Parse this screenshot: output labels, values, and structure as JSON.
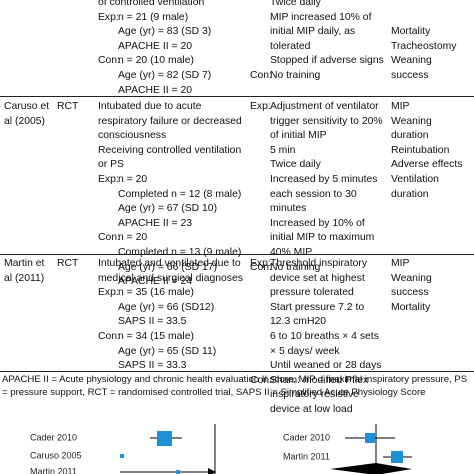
{
  "table": {
    "rows": [
      {
        "study": null,
        "design": null,
        "participants": {
          "description": [
            "of controlled ventilation"
          ],
          "groups": [
            {
              "label": "Exp:",
              "items": [
                "n = 21 (9 male)",
                "Age (yr) = 83 (SD 3)",
                "APACHE II = 20"
              ]
            },
            {
              "label": "Con:",
              "items": [
                "n = 20 (10 male)",
                "Age (yr) = 82 (SD 7)",
                "APACHE II = 20"
              ]
            }
          ]
        },
        "intervention": [
          {
            "label": null,
            "items": [
              "Twice daily",
              "MIP increased 10% of initial MIP daily, as tolerated",
              "Stopped if adverse signs"
            ]
          },
          {
            "label": "Con:",
            "items": [
              "No training"
            ]
          }
        ],
        "outcomes": [
          "Mortality",
          "Tracheostomy",
          "Weaning success"
        ]
      },
      {
        "study": "Caruso et al (2005)",
        "design": "RCT",
        "participants": {
          "description": [
            "Intubated due to acute respiratory failure or decreased consciousness",
            "Receiving controlled ventilation or PS"
          ],
          "groups": [
            {
              "label": "Exp:",
              "items": [
                "n = 20",
                "Completed n = 12 (8 male)",
                "Age (yr) = 67 (SD 10)",
                "APACHE II = 23"
              ]
            },
            {
              "label": "Con:",
              "items": [
                "n = 20",
                "Completed n = 13 (9 male)",
                "Age (yr) = 66 (SD 17)",
                "APACHE II = 24"
              ]
            }
          ]
        },
        "intervention": [
          {
            "label": "Exp:",
            "items": [
              "Adjustment of ventilator trigger sensitivity to 20% of initial MIP",
              "5 min",
              "Twice daily",
              "Increased by 5 minutes each session to 30 minutes",
              "Increased by 10% of initial MIP to maximum 40% MIP"
            ]
          },
          {
            "label": "Con:",
            "items": [
              "No training"
            ]
          }
        ],
        "outcomes": [
          "MIP",
          "Weaning duration",
          "Reintubation",
          "Adverse effects",
          "Ventilation duration"
        ]
      },
      {
        "study": "Martin et al (2011)",
        "design": "RCT",
        "participants": {
          "description": [
            "Intubated and ventilated due to medical and surgical diagnoses"
          ],
          "groups": [
            {
              "label": "Exp:",
              "items": [
                "n = 35 (16 male)",
                "Age (yr) = 66 (SD12)",
                "SAPS II = 33.5"
              ]
            },
            {
              "label": "Con:",
              "items": [
                "n = 34 (15 male)",
                "Age (yr) = 65 (SD 11)",
                "SAPS II = 33.3"
              ]
            }
          ]
        },
        "intervention": [
          {
            "label": "Exp:",
            "items": [
              "Threshold inspiratory device set at highest pressure tolerated",
              "Start pressure 7.2 to 12.3 cmH20",
              "6 to 10 breaths × 4 sets × 5 days/ week",
              "Until weaned or 28 days"
            ]
          },
          {
            "label": "Con:",
            "items": [
              "Sham: modified Pflex inspiratory resistive device at low load"
            ]
          }
        ],
        "outcomes": [
          "MIP",
          "Weaning success",
          "Mortality"
        ]
      }
    ],
    "footnote": "APACHE II = Acute physiology and chronic health evaluation II score, MIP = maximal inspiratory pressure, PS = pressure support, RCT = randomised controlled trial, SAPS II = Simplified Acute Physiology Score"
  },
  "figure": {
    "left_labels": [
      "Cader 2010",
      "Caruso 2005",
      "Martin 2011"
    ],
    "right_labels": [
      "Cader 2010",
      "Martin 2011"
    ]
  }
}
